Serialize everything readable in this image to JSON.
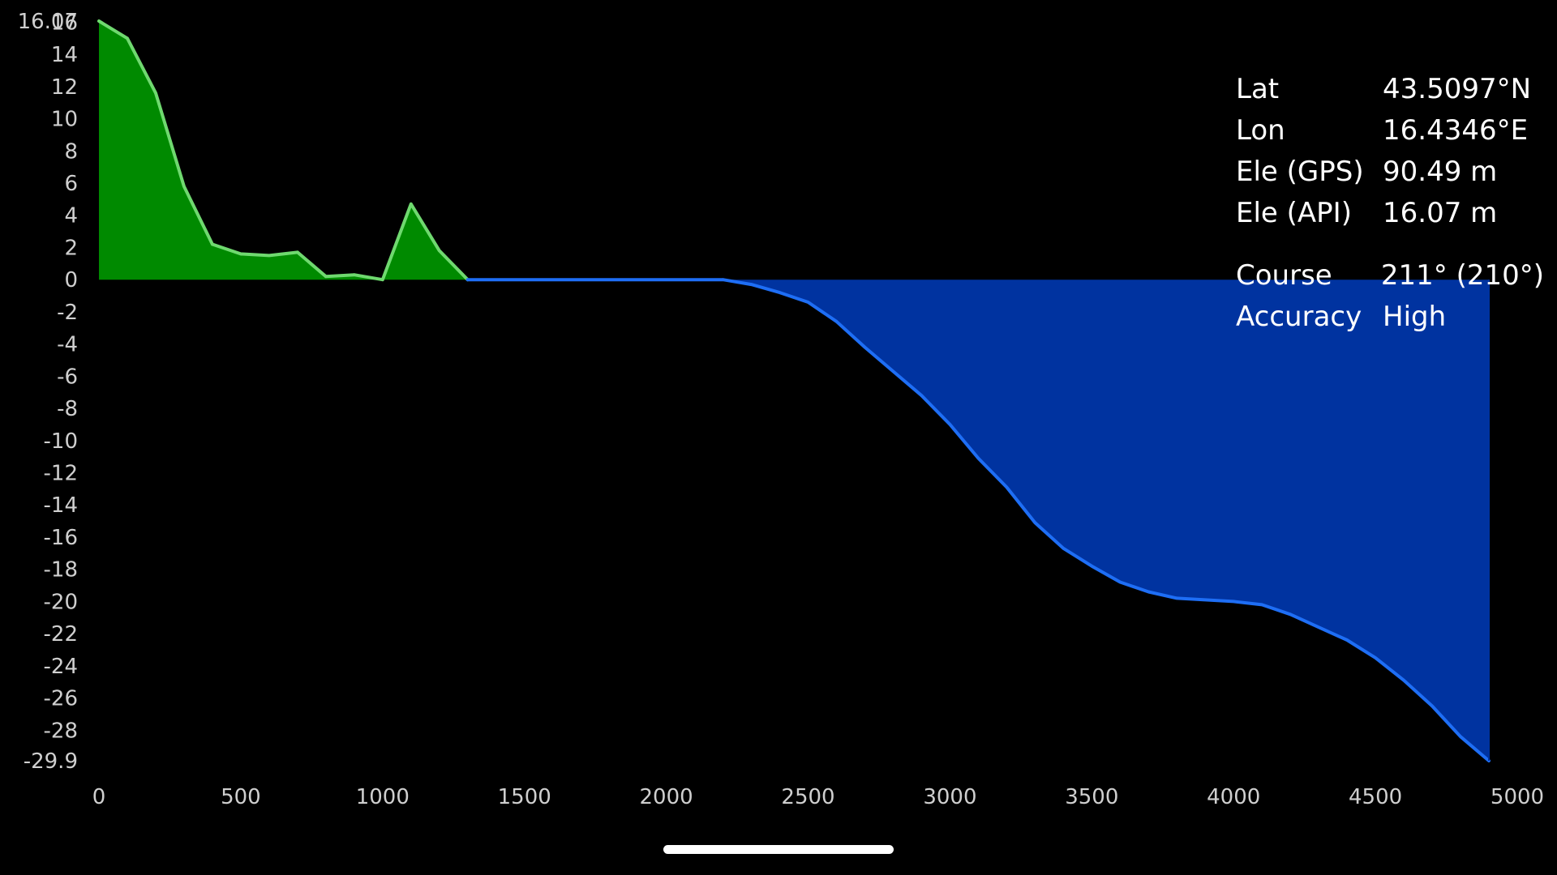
{
  "chart_data": {
    "type": "area",
    "title": "",
    "xlabel": "",
    "ylabel": "",
    "xlim": [
      0,
      5000
    ],
    "ylim": [
      -29.9,
      16.07
    ],
    "grid": false,
    "legend": "none",
    "x_ticks": [
      0,
      500,
      1000,
      1500,
      2000,
      2500,
      3000,
      3500,
      4000,
      4500,
      5000
    ],
    "y_ticks": [
      "16.07",
      "16",
      "14",
      "12",
      "10",
      "8",
      "6",
      "4",
      "2",
      "0",
      "-2",
      "-4",
      "-6",
      "-8",
      "-10",
      "-12",
      "-14",
      "-16",
      "-18",
      "-20",
      "-22",
      "-24",
      "-26",
      "-28",
      "-29.9"
    ],
    "positive_fill": "#008a00",
    "positive_line": "#6fd96f",
    "negative_fill": "#0033a0",
    "negative_line": "#1e6ef5",
    "series": [
      {
        "x": [
          0,
          100,
          200,
          300,
          400,
          500,
          600,
          700,
          800,
          900,
          1000,
          1100,
          1200,
          1300,
          1400,
          1500,
          1600,
          1700,
          1800,
          1900,
          2000,
          2100,
          2200,
          2300,
          2400,
          2500,
          2600,
          2700,
          2800,
          2900,
          3000,
          3100,
          3200,
          3300,
          3400,
          3500,
          3600,
          3700,
          3800,
          3900,
          4000,
          4100,
          4200,
          4300,
          4400,
          4500,
          4600,
          4700,
          4800,
          4900
        ],
        "values": [
          16.07,
          15.0,
          11.6,
          5.8,
          2.2,
          1.6,
          1.5,
          1.7,
          0.2,
          0.3,
          0.0,
          4.7,
          1.8,
          0.0,
          0.0,
          0.0,
          0.0,
          0.0,
          0.0,
          0.0,
          0.0,
          0.0,
          0.0,
          -0.3,
          -0.8,
          -1.4,
          -2.6,
          -4.2,
          -5.7,
          -7.2,
          -9.0,
          -11.1,
          -12.9,
          -15.1,
          -16.7,
          -17.8,
          -18.8,
          -19.4,
          -19.8,
          -19.9,
          -20.0,
          -20.2,
          -20.8,
          -21.6,
          -22.4,
          -23.5,
          -24.9,
          -26.5,
          -28.4,
          -29.9
        ]
      }
    ]
  },
  "info": {
    "rows": [
      {
        "label": "Lat",
        "value": "43.5097°N"
      },
      {
        "label": "Lon",
        "value": "16.4346°E"
      },
      {
        "label": "Ele (GPS)",
        "value": "90.49 m"
      },
      {
        "label": "Ele (API)",
        "value": "16.07 m"
      },
      {
        "label": "Course",
        "value": "211° (210°)"
      },
      {
        "label": "Accuracy",
        "value": "High"
      }
    ]
  },
  "colors": {
    "background": "#000000",
    "tick_text": "#cfcfcf",
    "info_text": "#ffffff",
    "home_indicator": "#ffffff"
  }
}
